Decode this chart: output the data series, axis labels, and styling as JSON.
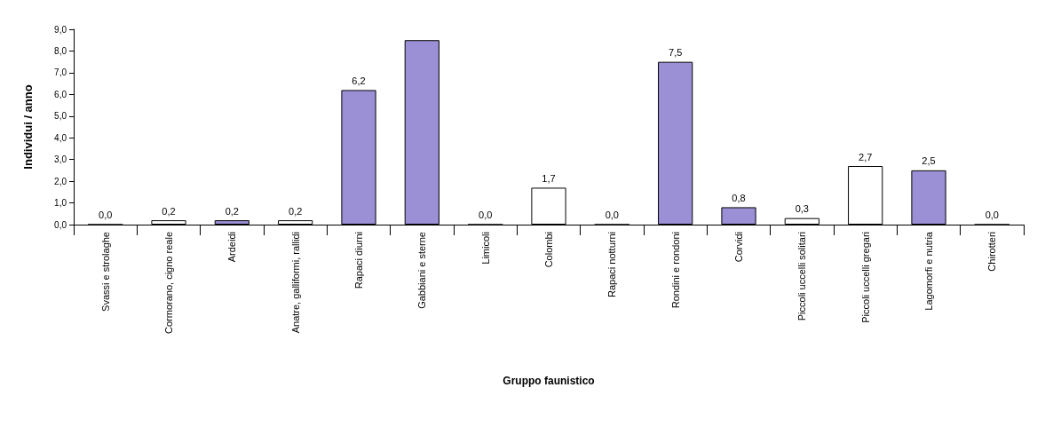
{
  "chart_data": {
    "type": "bar",
    "xlabel": "Gruppo faunistico",
    "ylabel": "Individui / anno",
    "categories": [
      "Svassi e strolaghe",
      "Cormorano, cigno reale",
      "Ardeidi",
      "Anatre, galliformi, rallidi",
      "Rapaci diurni",
      "Gabbiani e sterne",
      "Limicoli",
      "Colombi",
      "Rapaci notturni",
      "Rondini e rondoni",
      "Corvidi",
      "Piccoli uccelli solitari",
      "Piccoli uccelli gregari",
      "Lagomorfi e nutria",
      "Chirotteri"
    ],
    "values": [
      0.0,
      0.2,
      0.2,
      0.2,
      6.2,
      8.5,
      0.0,
      1.7,
      0.0,
      7.5,
      0.8,
      0.3,
      2.7,
      2.5,
      0.0
    ],
    "value_labels": [
      "0,0",
      "0,2",
      "0,2",
      "0,2",
      "6,2",
      null,
      "0,0",
      "1,7",
      "0,0",
      "7,5",
      "0,8",
      "0,3",
      "2,7",
      "2,5",
      "0,0"
    ],
    "colors": [
      "#9b8fd6",
      "#ffffff",
      "#9b8fd6",
      "#ffffff",
      "#9b8fd6",
      "#9b8fd6",
      "#ffffff",
      "#ffffff",
      "#ffffff",
      "#9b8fd6",
      "#9b8fd6",
      "#ffffff",
      "#ffffff",
      "#9b8fd6",
      "#ffffff"
    ],
    "ylim": [
      0,
      9
    ],
    "yticks": [
      {
        "value": 0,
        "label": "0,0"
      },
      {
        "value": 1,
        "label": "1,0"
      },
      {
        "value": 2,
        "label": "2,0"
      },
      {
        "value": 3,
        "label": "3,0"
      },
      {
        "value": 4,
        "label": "4,0"
      },
      {
        "value": 5,
        "label": "5,0"
      },
      {
        "value": 6,
        "label": "6,0"
      },
      {
        "value": 7,
        "label": "7,0"
      },
      {
        "value": 8,
        "label": "8,0"
      },
      {
        "value": 9,
        "label": "9,0"
      }
    ],
    "grid": false
  }
}
